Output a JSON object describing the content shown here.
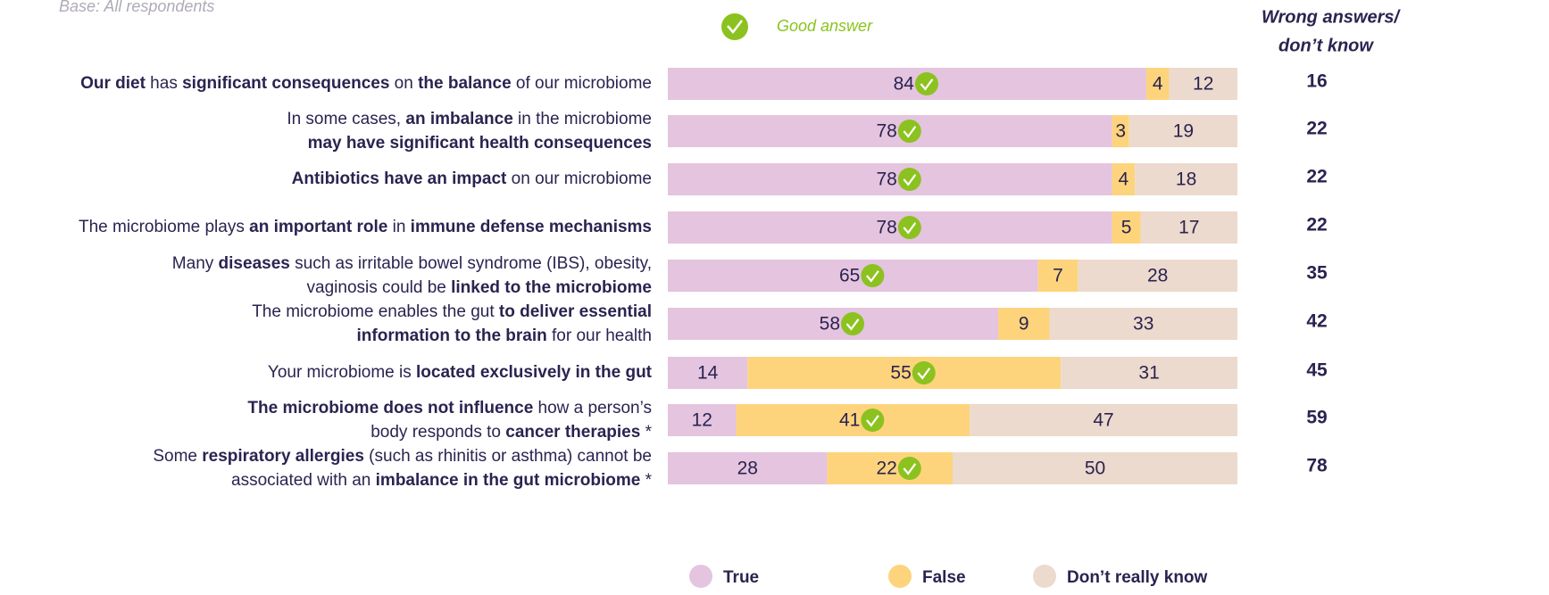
{
  "chart_data": {
    "type": "stacked-bar",
    "subtitle": "Base: All respondents",
    "good_answer_legend": "Good answer",
    "xlim": [
      0,
      100
    ],
    "labels": [
      [
        [
          {
            "text": "Our diet",
            "bold": true
          },
          {
            "text": " has "
          },
          {
            "text": "significant consequences",
            "bold": true
          },
          {
            "text": " on "
          },
          {
            "text": "the balance",
            "bold": true
          },
          {
            "text": " of our microbiome"
          }
        ]
      ],
      [
        [
          {
            "text": "In some cases, "
          },
          {
            "text": "an imbalance",
            "bold": true
          },
          {
            "text": " in the microbiome"
          }
        ],
        [
          {
            "text": "may have significant health consequences",
            "bold": true
          }
        ]
      ],
      [
        [
          {
            "text": "Antibiotics have an impact",
            "bold": true
          },
          {
            "text": " on our microbiome"
          }
        ]
      ],
      [
        [
          {
            "text": "The microbiome plays "
          },
          {
            "text": "an important role",
            "bold": true
          },
          {
            "text": " in "
          },
          {
            "text": "immune defense mechanisms",
            "bold": true
          }
        ]
      ],
      [
        [
          {
            "text": "Many "
          },
          {
            "text": "diseases",
            "bold": true
          },
          {
            "text": " such as irritable bowel syndrome (IBS), obesity,"
          }
        ],
        [
          {
            "text": "vaginosis could be "
          },
          {
            "text": "linked to the microbiome",
            "bold": true
          }
        ]
      ],
      [
        [
          {
            "text": "The microbiome enables the gut "
          },
          {
            "text": "to deliver essential",
            "bold": true
          }
        ],
        [
          {
            "text": "information to the brain",
            "bold": true
          },
          {
            "text": " for our health"
          }
        ]
      ],
      [
        [
          {
            "text": "Your microbiome is "
          },
          {
            "text": "located exclusively in the gut",
            "bold": true
          }
        ]
      ],
      [
        [
          {
            "text": "The microbiome does not influence",
            "bold": true
          },
          {
            "text": " how a person’s"
          }
        ],
        [
          {
            "text": "body responds to "
          },
          {
            "text": "cancer therapies",
            "bold": true
          },
          {
            "text": " *"
          }
        ]
      ],
      [
        [
          {
            "text": "Some "
          },
          {
            "text": "respiratory allergies",
            "bold": true
          },
          {
            "text": " (such as rhinitis or asthma) cannot be"
          }
        ],
        [
          {
            "text": "associated with an "
          },
          {
            "text": "imbalance in the gut microbiome",
            "bold": true
          },
          {
            "text": " *"
          }
        ]
      ]
    ],
    "series": [
      {
        "name": "True",
        "color": "#e4c4df",
        "values": [
          84,
          78,
          78,
          78,
          65,
          58,
          14,
          12,
          28
        ]
      },
      {
        "name": "False",
        "color": "#fdd47c",
        "values": [
          4,
          3,
          4,
          5,
          7,
          9,
          55,
          41,
          22
        ]
      },
      {
        "name": "Don’t really know",
        "color": "#ebdacd",
        "values": [
          12,
          19,
          18,
          17,
          28,
          33,
          31,
          47,
          50
        ]
      }
    ],
    "good_answer": [
      0,
      0,
      0,
      0,
      0,
      0,
      1,
      1,
      1
    ],
    "check_color": "#8cc21f",
    "wrong_answers": {
      "title": [
        "Wrong answers/",
        "don’t know"
      ],
      "values": [
        16,
        22,
        22,
        22,
        35,
        42,
        45,
        59,
        78
      ]
    }
  }
}
